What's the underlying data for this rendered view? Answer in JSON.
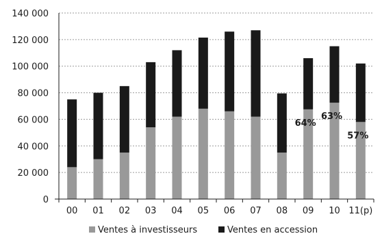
{
  "chart_data": {
    "type": "bar",
    "stacked": true,
    "categories": [
      "00",
      "01",
      "02",
      "03",
      "04",
      "05",
      "06",
      "07",
      "08",
      "09",
      "10",
      "11(p)"
    ],
    "series": [
      {
        "name": "Ventes à investisseurs",
        "color": "#999999",
        "values": [
          24000,
          30000,
          35000,
          54000,
          62000,
          68000,
          66000,
          62000,
          35000,
          67500,
          72500,
          58000
        ]
      },
      {
        "name": "Ventes en accession",
        "color": "#1a1a1a",
        "values": [
          51000,
          50000,
          50000,
          49000,
          50000,
          53500,
          60000,
          65000,
          44500,
          38500,
          42500,
          44000
        ]
      }
    ],
    "annotations": [
      {
        "category": "09",
        "text": "64%"
      },
      {
        "category": "10",
        "text": "63%"
      },
      {
        "category": "11(p)",
        "text": "57%"
      }
    ],
    "yticks": [
      0,
      20000,
      40000,
      60000,
      80000,
      100000,
      120000,
      140000
    ],
    "ytick_labels": [
      "0",
      "20 000",
      "40 000",
      "60 000",
      "80 000",
      "100 000",
      "120 000",
      "140 000"
    ],
    "ylim": [
      0,
      140000
    ],
    "grid": true,
    "legend_position": "bottom"
  }
}
